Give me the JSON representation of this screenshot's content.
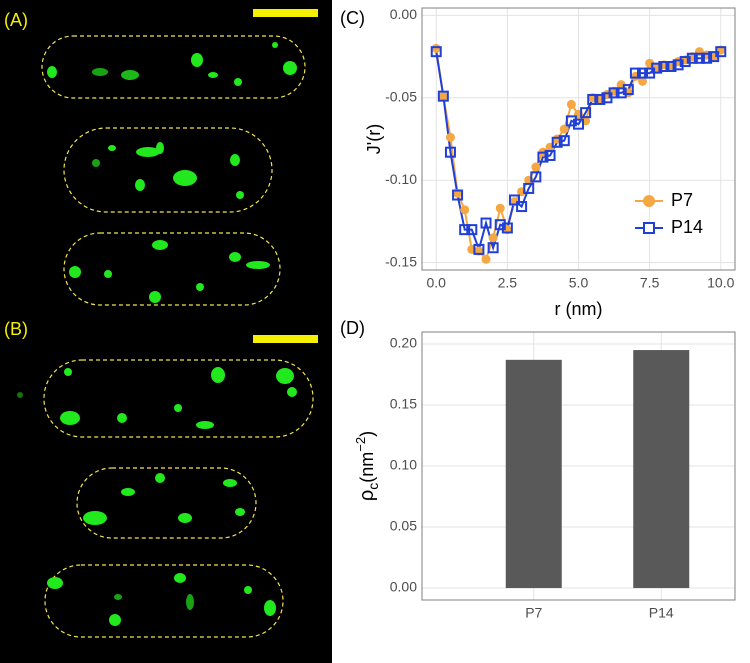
{
  "panels": {
    "a": "(A)",
    "b": "(B)"
  },
  "chart_data": [
    {
      "type": "line",
      "panel_label": "(C)",
      "xlabel": "r (nm)",
      "ylabel": "J'(r)",
      "x": [
        0,
        0.25,
        0.5,
        0.75,
        1,
        1.25,
        1.5,
        1.75,
        2,
        2.25,
        2.5,
        2.75,
        3,
        3.25,
        3.5,
        3.75,
        4,
        4.25,
        4.5,
        4.75,
        5,
        5.25,
        5.5,
        5.75,
        6,
        6.25,
        6.5,
        6.75,
        7,
        7.25,
        7.5,
        7.75,
        8,
        8.25,
        8.5,
        8.75,
        9,
        9.25,
        9.5,
        9.75,
        10
      ],
      "series": [
        {
          "name": "P7",
          "color": "#f5a742",
          "marker": "circle",
          "values": [
            -0.02,
            -0.049,
            -0.074,
            -0.108,
            -0.118,
            -0.142,
            -0.143,
            -0.148,
            -0.135,
            -0.117,
            -0.13,
            -0.113,
            -0.107,
            -0.1,
            -0.092,
            -0.083,
            -0.08,
            -0.075,
            -0.069,
            -0.054,
            -0.06,
            -0.064,
            -0.05,
            -0.051,
            -0.048,
            -0.046,
            -0.042,
            -0.047,
            -0.037,
            -0.04,
            -0.029,
            -0.032,
            -0.03,
            -0.031,
            -0.028,
            -0.027,
            -0.025,
            -0.022,
            -0.024,
            -0.025,
            -0.021
          ]
        },
        {
          "name": "P14",
          "color": "#1f3fd6",
          "marker": "square",
          "values": [
            -0.022,
            -0.049,
            -0.083,
            -0.109,
            -0.13,
            -0.13,
            -0.142,
            -0.126,
            -0.141,
            -0.127,
            -0.129,
            -0.112,
            -0.116,
            -0.105,
            -0.098,
            -0.086,
            -0.085,
            -0.077,
            -0.076,
            -0.064,
            -0.066,
            -0.059,
            -0.051,
            -0.051,
            -0.05,
            -0.047,
            -0.047,
            -0.045,
            -0.035,
            -0.035,
            -0.035,
            -0.032,
            -0.031,
            -0.031,
            -0.03,
            -0.028,
            -0.026,
            -0.026,
            -0.026,
            -0.025,
            -0.022
          ]
        }
      ],
      "xlim": [
        -0.5,
        10.5
      ],
      "ylim": [
        -0.1545,
        0.0045
      ],
      "xticks": [
        {
          "value": 0,
          "label": "0.0"
        },
        2.5,
        {
          "value": 5,
          "label": "5.0"
        },
        7.5,
        {
          "value": 10,
          "label": "10.0"
        }
      ],
      "yticks": [
        {
          "value": -0.15,
          "label": "-0.15"
        },
        {
          "value": -0.1,
          "label": "-0.10"
        },
        {
          "value": -0.05,
          "label": "-0.05"
        },
        {
          "value": 0,
          "label": "0.00"
        }
      ],
      "grid": true,
      "legend": "bottom-right"
    },
    {
      "type": "bar",
      "panel_label": "(D)",
      "ylabel_parts": [
        "ρ",
        "c",
        "(nm",
        "−2",
        ")"
      ],
      "categories": [
        "P7",
        "P14"
      ],
      "values": [
        0.187,
        0.195
      ],
      "color": "#595959",
      "ylim": [
        -0.0098,
        0.2098
      ],
      "yticks": [
        {
          "value": 0,
          "label": "0.00"
        },
        0.05,
        {
          "value": 0.1,
          "label": "0.10"
        },
        0.15,
        {
          "value": 0.2,
          "label": "0.20"
        }
      ],
      "grid": true
    }
  ]
}
